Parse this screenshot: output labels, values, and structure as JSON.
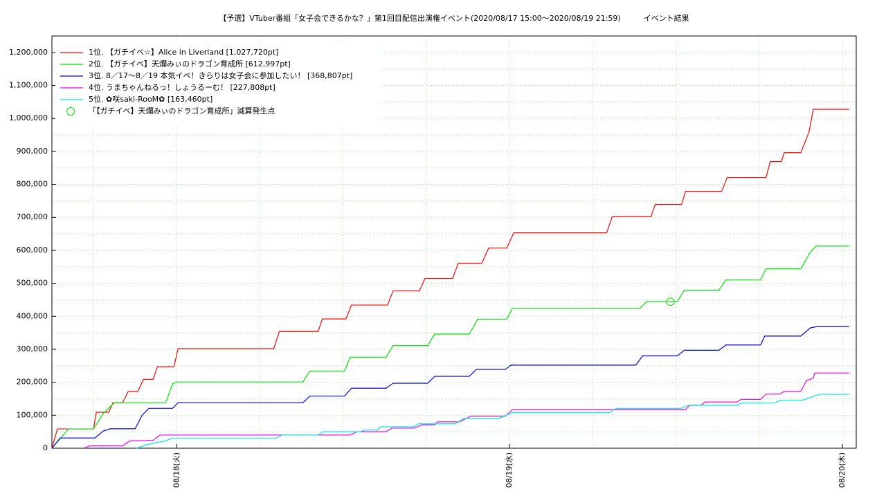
{
  "chart_data": {
    "type": "line",
    "title": "【予選】VTuber番組「女子会できるかな？」第1回目配信出演権イベント(2020/08/17 15:00〜2020/08/19 21:59)　　　イベント結果",
    "xlim": [
      15,
      73
    ],
    "xticks": [
      {
        "value": 24,
        "label": "08/18(火)"
      },
      {
        "value": 48,
        "label": "08/19(水)"
      },
      {
        "value": 72,
        "label": "08/20(木)"
      }
    ],
    "xminorticks": [
      18,
      30,
      36,
      42,
      54,
      60,
      66
    ],
    "ylim": [
      0,
      1250000
    ],
    "yticks": [
      {
        "value": 0,
        "label": "0"
      },
      {
        "value": 100000,
        "label": "100,000"
      },
      {
        "value": 200000,
        "label": "200,000"
      },
      {
        "value": 300000,
        "label": "300,000"
      },
      {
        "value": 400000,
        "label": "400,000"
      },
      {
        "value": 500000,
        "label": "500,000"
      },
      {
        "value": 600000,
        "label": "600,000"
      },
      {
        "value": 700000,
        "label": "700,000"
      },
      {
        "value": 800000,
        "label": "800,000"
      },
      {
        "value": 900000,
        "label": "900,000"
      },
      {
        "value": 1000000,
        "label": "1,000,000"
      },
      {
        "value": 1100000,
        "label": "1,100,000"
      },
      {
        "value": 1200000,
        "label": "1,200,000"
      }
    ],
    "yminorticks": [
      50000,
      150000,
      250000,
      350000,
      450000,
      550000,
      650000,
      750000,
      850000,
      950000,
      1050000,
      1150000
    ],
    "grid": true,
    "grid_color": "#90e890",
    "legend": "upper left",
    "series": [
      {
        "name": "1位. 【ガチイベ☆】Alice in Liverland [1,027,720pt]",
        "color": "#ff0000",
        "x": [
          15.0,
          15.4,
          18.0,
          18.2,
          19.1,
          19.4,
          20.1,
          20.5,
          21.2,
          21.6,
          22.3,
          22.6,
          23.8,
          24.1,
          31.0,
          31.4,
          34.2,
          34.5,
          36.2,
          36.6,
          39.2,
          39.6,
          41.5,
          41.9,
          43.9,
          44.3,
          46.0,
          46.5,
          47.8,
          48.3,
          55.0,
          55.4,
          58.2,
          58.5,
          60.4,
          60.7,
          63.3,
          63.7,
          66.5,
          66.8,
          67.6,
          67.8,
          69.0,
          69.6,
          69.9,
          72.5
        ],
        "values": [
          0,
          58600,
          58600,
          109000,
          109000,
          138000,
          138000,
          172000,
          172000,
          209000,
          209000,
          247000,
          247000,
          302000,
          302000,
          354000,
          354000,
          392000,
          392000,
          434000,
          434000,
          477000,
          477000,
          515000,
          515000,
          561000,
          561000,
          607000,
          607000,
          653000,
          653000,
          702000,
          702000,
          739000,
          739000,
          779000,
          779000,
          821000,
          821000,
          869000,
          869000,
          896000,
          896000,
          959000,
          1027720,
          1027720
        ]
      },
      {
        "name": "2位. 【ガチイベ】天爛みぃのドラゴン育成所 [612,997pt]",
        "color": "#00e000",
        "x": [
          15.0,
          16.2,
          18.0,
          18.7,
          19.5,
          23.2,
          23.7,
          24.0,
          33.1,
          33.6,
          36.1,
          36.5,
          39.1,
          39.6,
          42.1,
          42.6,
          45.1,
          45.7,
          47.8,
          48.2,
          57.4,
          57.9,
          60.1,
          60.6,
          63.1,
          63.6,
          66.1,
          66.5,
          69.0,
          69.7,
          70.1,
          72.5
        ],
        "values": [
          0,
          58600,
          58600,
          105000,
          138000,
          138000,
          195000,
          201000,
          201000,
          234000,
          234000,
          276000,
          276000,
          311000,
          311000,
          346000,
          346000,
          391000,
          391000,
          424000,
          424000,
          445000,
          445000,
          479000,
          479000,
          510000,
          510000,
          544000,
          544000,
          595000,
          612997,
          612997
        ]
      },
      {
        "name": "3位. 8／17〜8／19 本気イベ！きらりは女子会に参加したい！ [368,807pt]",
        "color": "#0000dd",
        "x": [
          15.0,
          15.6,
          18.1,
          18.7,
          19.2,
          21.0,
          21.5,
          22.0,
          23.7,
          24.1,
          33.1,
          33.6,
          36.1,
          36.6,
          39.1,
          39.6,
          42.1,
          42.6,
          45.1,
          45.6,
          47.7,
          48.1,
          57.1,
          57.6,
          60.1,
          60.6,
          63.1,
          63.6,
          66.1,
          66.4,
          69.0,
          69.7,
          70.2,
          72.5
        ],
        "values": [
          0,
          31000,
          31000,
          52000,
          59000,
          59000,
          100000,
          121000,
          121000,
          138000,
          138000,
          158000,
          158000,
          182000,
          182000,
          197000,
          197000,
          218000,
          218000,
          239000,
          239000,
          252000,
          252000,
          280000,
          280000,
          297000,
          297000,
          313000,
          313000,
          340000,
          340000,
          365000,
          368807,
          368807
        ]
      },
      {
        "name": "4位. うまちゃんねるっ！しょうるーむ！ [227,808pt]",
        "color": "#ee00ee",
        "x": [
          17.3,
          17.7,
          20.1,
          20.6,
          22.3,
          22.8,
          36.5,
          37.0,
          39.1,
          39.5,
          41.1,
          41.7,
          42.6,
          42.8,
          44.4,
          45.2,
          47.7,
          48.2,
          60.7,
          61.0,
          61.8,
          62.1,
          64.4,
          64.7,
          66.1,
          66.5,
          67.5,
          67.8,
          69.0,
          69.4,
          69.9,
          70.0,
          72.5
        ],
        "values": [
          0,
          7000,
          7000,
          22000,
          24000,
          40000,
          40000,
          50000,
          50000,
          61000,
          61000,
          71000,
          71000,
          80000,
          80000,
          97000,
          97000,
          117000,
          117000,
          130000,
          130000,
          140000,
          140000,
          148000,
          148000,
          164000,
          164000,
          172000,
          172000,
          205000,
          212000,
          227808,
          227808
        ]
      },
      {
        "name": "5位. ✿咲saki-RooM✿ [163,460pt]",
        "color": "#00e8e8",
        "x": [
          21.1,
          21.8,
          22.5,
          23.2,
          23.6,
          31.1,
          31.6,
          34.2,
          34.6,
          37.2,
          37.6,
          38.5,
          38.7,
          41.1,
          41.4,
          44.1,
          44.7,
          47.2,
          48.2,
          55.2,
          55.7,
          60.4,
          60.9,
          64.4,
          64.7,
          67.1,
          67.5,
          69.1,
          70.1,
          70.4,
          72.5
        ],
        "values": [
          0,
          10000,
          17000,
          22000,
          30000,
          30000,
          40000,
          40000,
          50000,
          50000,
          55000,
          55000,
          65000,
          65000,
          74000,
          74000,
          90000,
          90000,
          108000,
          108000,
          121000,
          121000,
          130000,
          130000,
          137000,
          137000,
          145000,
          145000,
          160000,
          163460,
          163460
        ]
      }
    ],
    "markers": [
      {
        "name": "「【ガチイベ】天爛みぃのドラゴン育成所」減算発生点",
        "color": "#00e000",
        "x": 59.6,
        "y": 444000
      }
    ]
  }
}
